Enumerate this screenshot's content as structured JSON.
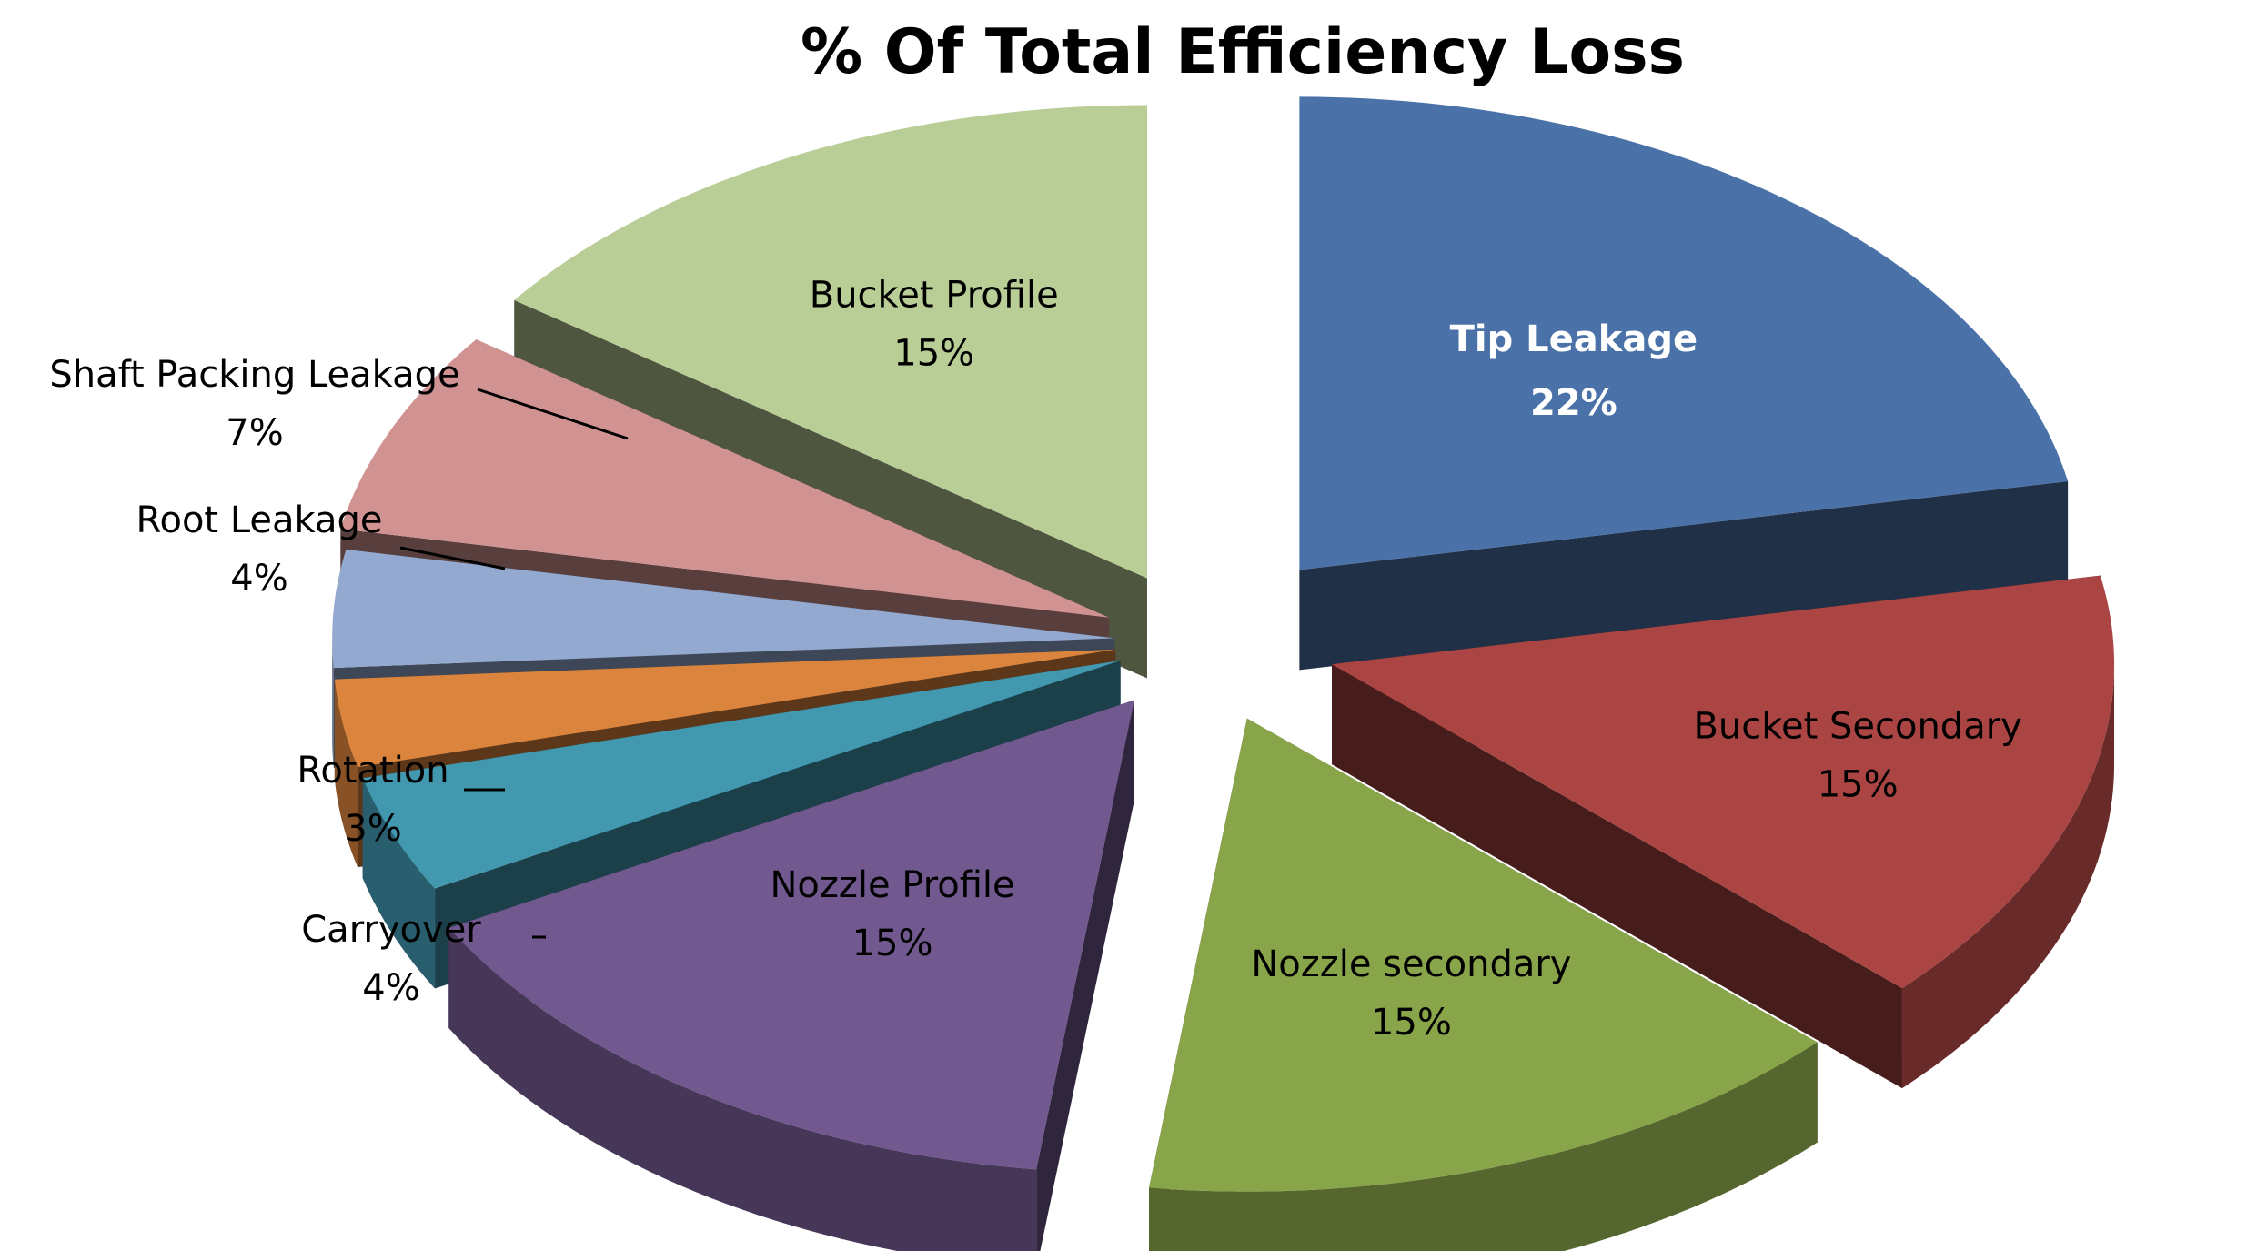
{
  "chart_data": {
    "type": "pie",
    "style": "3d-exploded",
    "title": "% Of Total Efficiency Loss",
    "unit": "%",
    "slices": [
      {
        "name": "Tip Leakage",
        "value": 22,
        "label_value": "22%",
        "color": "#4a72a8",
        "label_color": "#ffffff",
        "label_bold": true
      },
      {
        "name": "Bucket Secondary",
        "value": 15,
        "label_value": "15%",
        "color": "#aa4543",
        "label_color": "#000000"
      },
      {
        "name": "Nozzle secondary",
        "value": 15,
        "label_value": "15%",
        "color": "#89a54a",
        "label_color": "#000000"
      },
      {
        "name": "Nozzle Profile",
        "value": 15,
        "label_value": "15%",
        "color": "#71588f",
        "label_color": "#000000"
      },
      {
        "name": "Carryover",
        "value": 4,
        "label_value": "4%",
        "color": "#4198af",
        "label_color": "#000000"
      },
      {
        "name": "Rotation",
        "value": 3,
        "label_value": "3%",
        "color": "#db843d",
        "label_color": "#000000"
      },
      {
        "name": "Root Leakage",
        "value": 4,
        "label_value": "4%",
        "color": "#93a9cf",
        "label_color": "#000000"
      },
      {
        "name": "Shaft Packing Leakage",
        "value": 7,
        "label_value": "7%",
        "color": "#d19392",
        "label_color": "#000000"
      },
      {
        "name": "Bucket Profile",
        "value": 15,
        "label_value": "15%",
        "color": "#b9cd96",
        "label_color": "#000000"
      }
    ]
  }
}
